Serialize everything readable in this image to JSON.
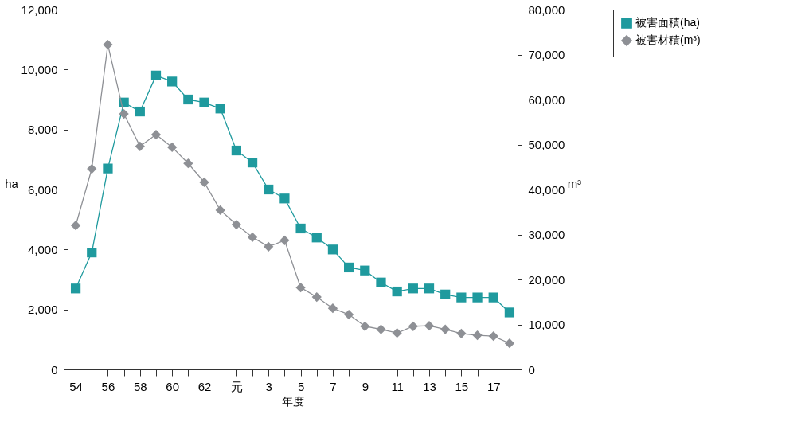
{
  "chart_data": {
    "type": "line",
    "xlabel": "年度",
    "ylabel": "ha",
    "y2label": "m³",
    "categories": [
      "54",
      null,
      "56",
      null,
      "58",
      null,
      "60",
      null,
      "62",
      null,
      "元",
      null,
      "3",
      null,
      "5",
      null,
      "7",
      null,
      "9",
      null,
      "11",
      null,
      "13",
      null,
      "15",
      null,
      "17",
      null
    ],
    "series": [
      {
        "name": "被害面積(ha)",
        "color": "#1f9a9e",
        "marker": "square",
        "values": [
          2700,
          3900,
          6700,
          8900,
          8600,
          9800,
          9600,
          9000,
          8900,
          8700,
          7300,
          6900,
          6000,
          5700,
          4700,
          4400,
          4000,
          3400,
          3300,
          2900,
          2600,
          2700,
          2700,
          2500,
          2400,
          2400,
          2400,
          1900
        ]
      },
      {
        "name": "被害材積(m³)",
        "color": "#8e9095",
        "marker": "diamond",
        "axis": "y2",
        "values": [
          32000,
          44600,
          72200,
          56800,
          49600,
          52200,
          49400,
          45800,
          41600,
          35400,
          32200,
          29400,
          27300,
          28700,
          18200,
          16100,
          13600,
          12200,
          9600,
          8900,
          8100,
          9600,
          9700,
          8900,
          8000,
          7600,
          7400,
          5800
        ]
      }
    ],
    "ylim": [
      0,
      12000
    ],
    "yticks": [
      0,
      {
        "value": 2000,
        "label": "2,000"
      },
      {
        "value": 4000,
        "label": "4,000"
      },
      {
        "value": 6000,
        "label": "6,000"
      },
      {
        "value": 8000,
        "label": "8,000"
      },
      {
        "value": 10000,
        "label": "10,000"
      },
      {
        "value": 12000,
        "label": "12,000"
      }
    ],
    "y2lim": [
      0,
      80000
    ],
    "y2ticks": [
      0,
      {
        "value": 10000,
        "label": "10,000"
      },
      {
        "value": 20000,
        "label": "20,000"
      },
      {
        "value": 30000,
        "label": "30,000"
      },
      {
        "value": 40000,
        "label": "40,000"
      },
      {
        "value": 50000,
        "label": "50,000"
      },
      {
        "value": 60000,
        "label": "60,000"
      },
      {
        "value": 70000,
        "label": "70,000"
      },
      {
        "value": 80000,
        "label": "80,000"
      }
    ],
    "legend": "right",
    "grid": false
  }
}
